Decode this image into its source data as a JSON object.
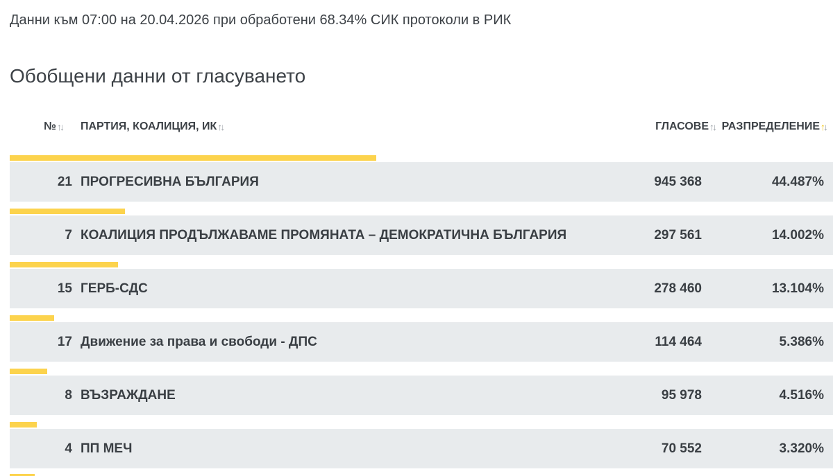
{
  "status_line": "Данни към 07:00 на 20.04.2026 при обработени 68.34% СИК протоколи в РИК",
  "section_title": "Обобщени данни от гласуването",
  "columns": {
    "num": "№",
    "party": "ПАРТИЯ, КОАЛИЦИЯ, ИК",
    "votes": "ГЛАСОВЕ",
    "distribution": "РАЗПРЕДЕЛЕНИЕ"
  },
  "colors": {
    "bar": "#fcd34d",
    "band": "#e8ebed",
    "sort_active": "#f2c200"
  },
  "rows": [
    {
      "num": "21",
      "party": "ПРОГРЕСИВНА БЪЛГАРИЯ",
      "votes": "945 368",
      "distribution": "44.487%",
      "share": 44.487
    },
    {
      "num": "7",
      "party": "КОАЛИЦИЯ ПРОДЪЛЖАВАМЕ ПРОМЯНАТА – ДЕМОКРАТИЧНА БЪЛГАРИЯ",
      "votes": "297 561",
      "distribution": "14.002%",
      "share": 14.002
    },
    {
      "num": "15",
      "party": "ГЕРБ-СДС",
      "votes": "278 460",
      "distribution": "13.104%",
      "share": 13.104
    },
    {
      "num": "17",
      "party": "Движение за права и свободи - ДПС",
      "votes": "114 464",
      "distribution": "5.386%",
      "share": 5.386
    },
    {
      "num": "8",
      "party": "ВЪЗРАЖДАНЕ",
      "votes": "95 978",
      "distribution": "4.516%",
      "share": 4.516
    },
    {
      "num": "4",
      "party": "ПП МЕЧ",
      "votes": "70 552",
      "distribution": "3.320%",
      "share": 3.32
    }
  ]
}
